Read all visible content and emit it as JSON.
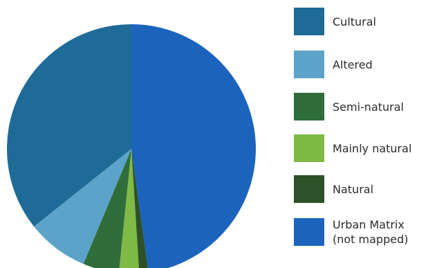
{
  "chart_data": {
    "type": "pie",
    "title": "",
    "start_angle_deg": 0,
    "direction": "clockwise",
    "legend_position": "right",
    "slices": [
      {
        "label": "Urban Matrix\n(not mapped)",
        "value": 47.8,
        "color": "#1c63bd"
      },
      {
        "label": "Natural",
        "value": 1.2,
        "color": "#2d5128"
      },
      {
        "label": "Mainly natural",
        "value": 2.6,
        "color": "#7fba46"
      },
      {
        "label": "Semi-natural",
        "value": 4.7,
        "color": "#2f6e3b"
      },
      {
        "label": "Altered",
        "value": 8.0,
        "color": "#5ba3c9"
      },
      {
        "label": "Cultural",
        "value": 35.7,
        "color": "#1f6b97"
      }
    ],
    "legend": [
      {
        "label": "Cultural",
        "color": "#1f6b97"
      },
      {
        "label": "Altered",
        "color": "#5ba3c9"
      },
      {
        "label": "Semi-natural",
        "color": "#2f6e3b"
      },
      {
        "label": "Mainly natural",
        "color": "#7fba46"
      },
      {
        "label": "Natural",
        "color": "#2d5128"
      },
      {
        "label": "Urban Matrix\n(not mapped)",
        "color": "#1c63bd"
      }
    ]
  }
}
